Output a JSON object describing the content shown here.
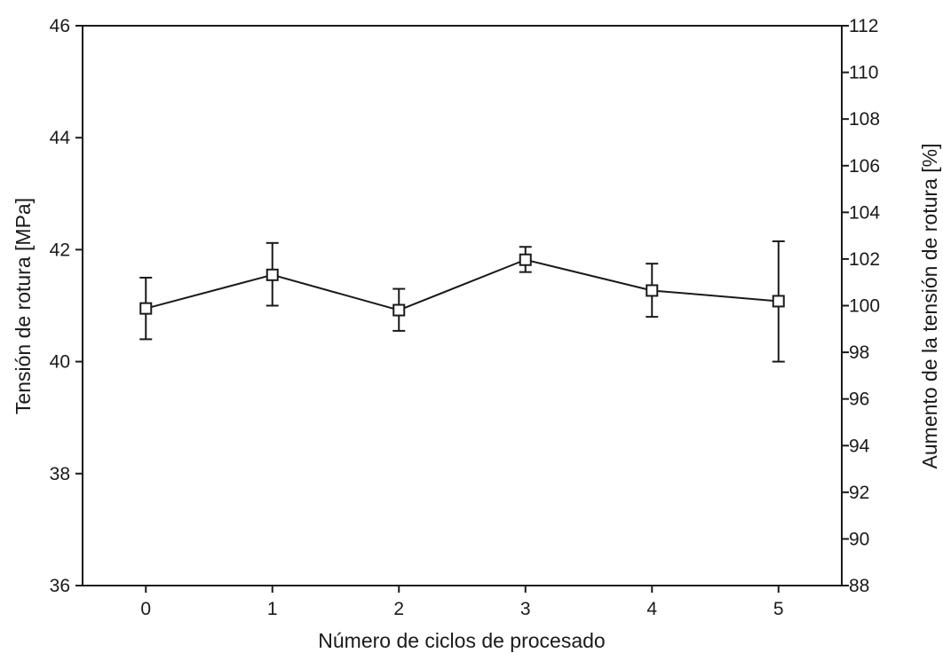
{
  "chart_data": {
    "type": "line",
    "title": "",
    "xlabel": "Número de ciclos de procesado",
    "ylabel": "Tensión de rotura [MPa]",
    "y2label": "Aumento de la tensión de rotura  [%]",
    "x": [
      0,
      1,
      2,
      3,
      4,
      5
    ],
    "xlim": [
      -0.5,
      5.5
    ],
    "ylim": [
      36,
      46
    ],
    "y2lim": [
      88,
      112
    ],
    "x_ticks": [
      "0",
      "1",
      "2",
      "3",
      "4",
      "5"
    ],
    "y_ticks": [
      "36",
      "38",
      "40",
      "42",
      "44",
      "46"
    ],
    "y2_ticks": [
      "88",
      "90",
      "92",
      "94",
      "96",
      "98",
      "100",
      "102",
      "104",
      "106",
      "108",
      "110",
      "112"
    ],
    "grid": false,
    "legend": "none",
    "series": [
      {
        "values": [
          40.95,
          41.55,
          40.92,
          41.82,
          41.27,
          41.08
        ],
        "error_low": [
          40.4,
          41.0,
          40.55,
          41.6,
          40.8,
          40.0
        ],
        "error_high": [
          41.5,
          42.12,
          41.3,
          42.05,
          41.75,
          42.15
        ],
        "marker": "open-square",
        "color": "#1a1a1a"
      }
    ]
  }
}
